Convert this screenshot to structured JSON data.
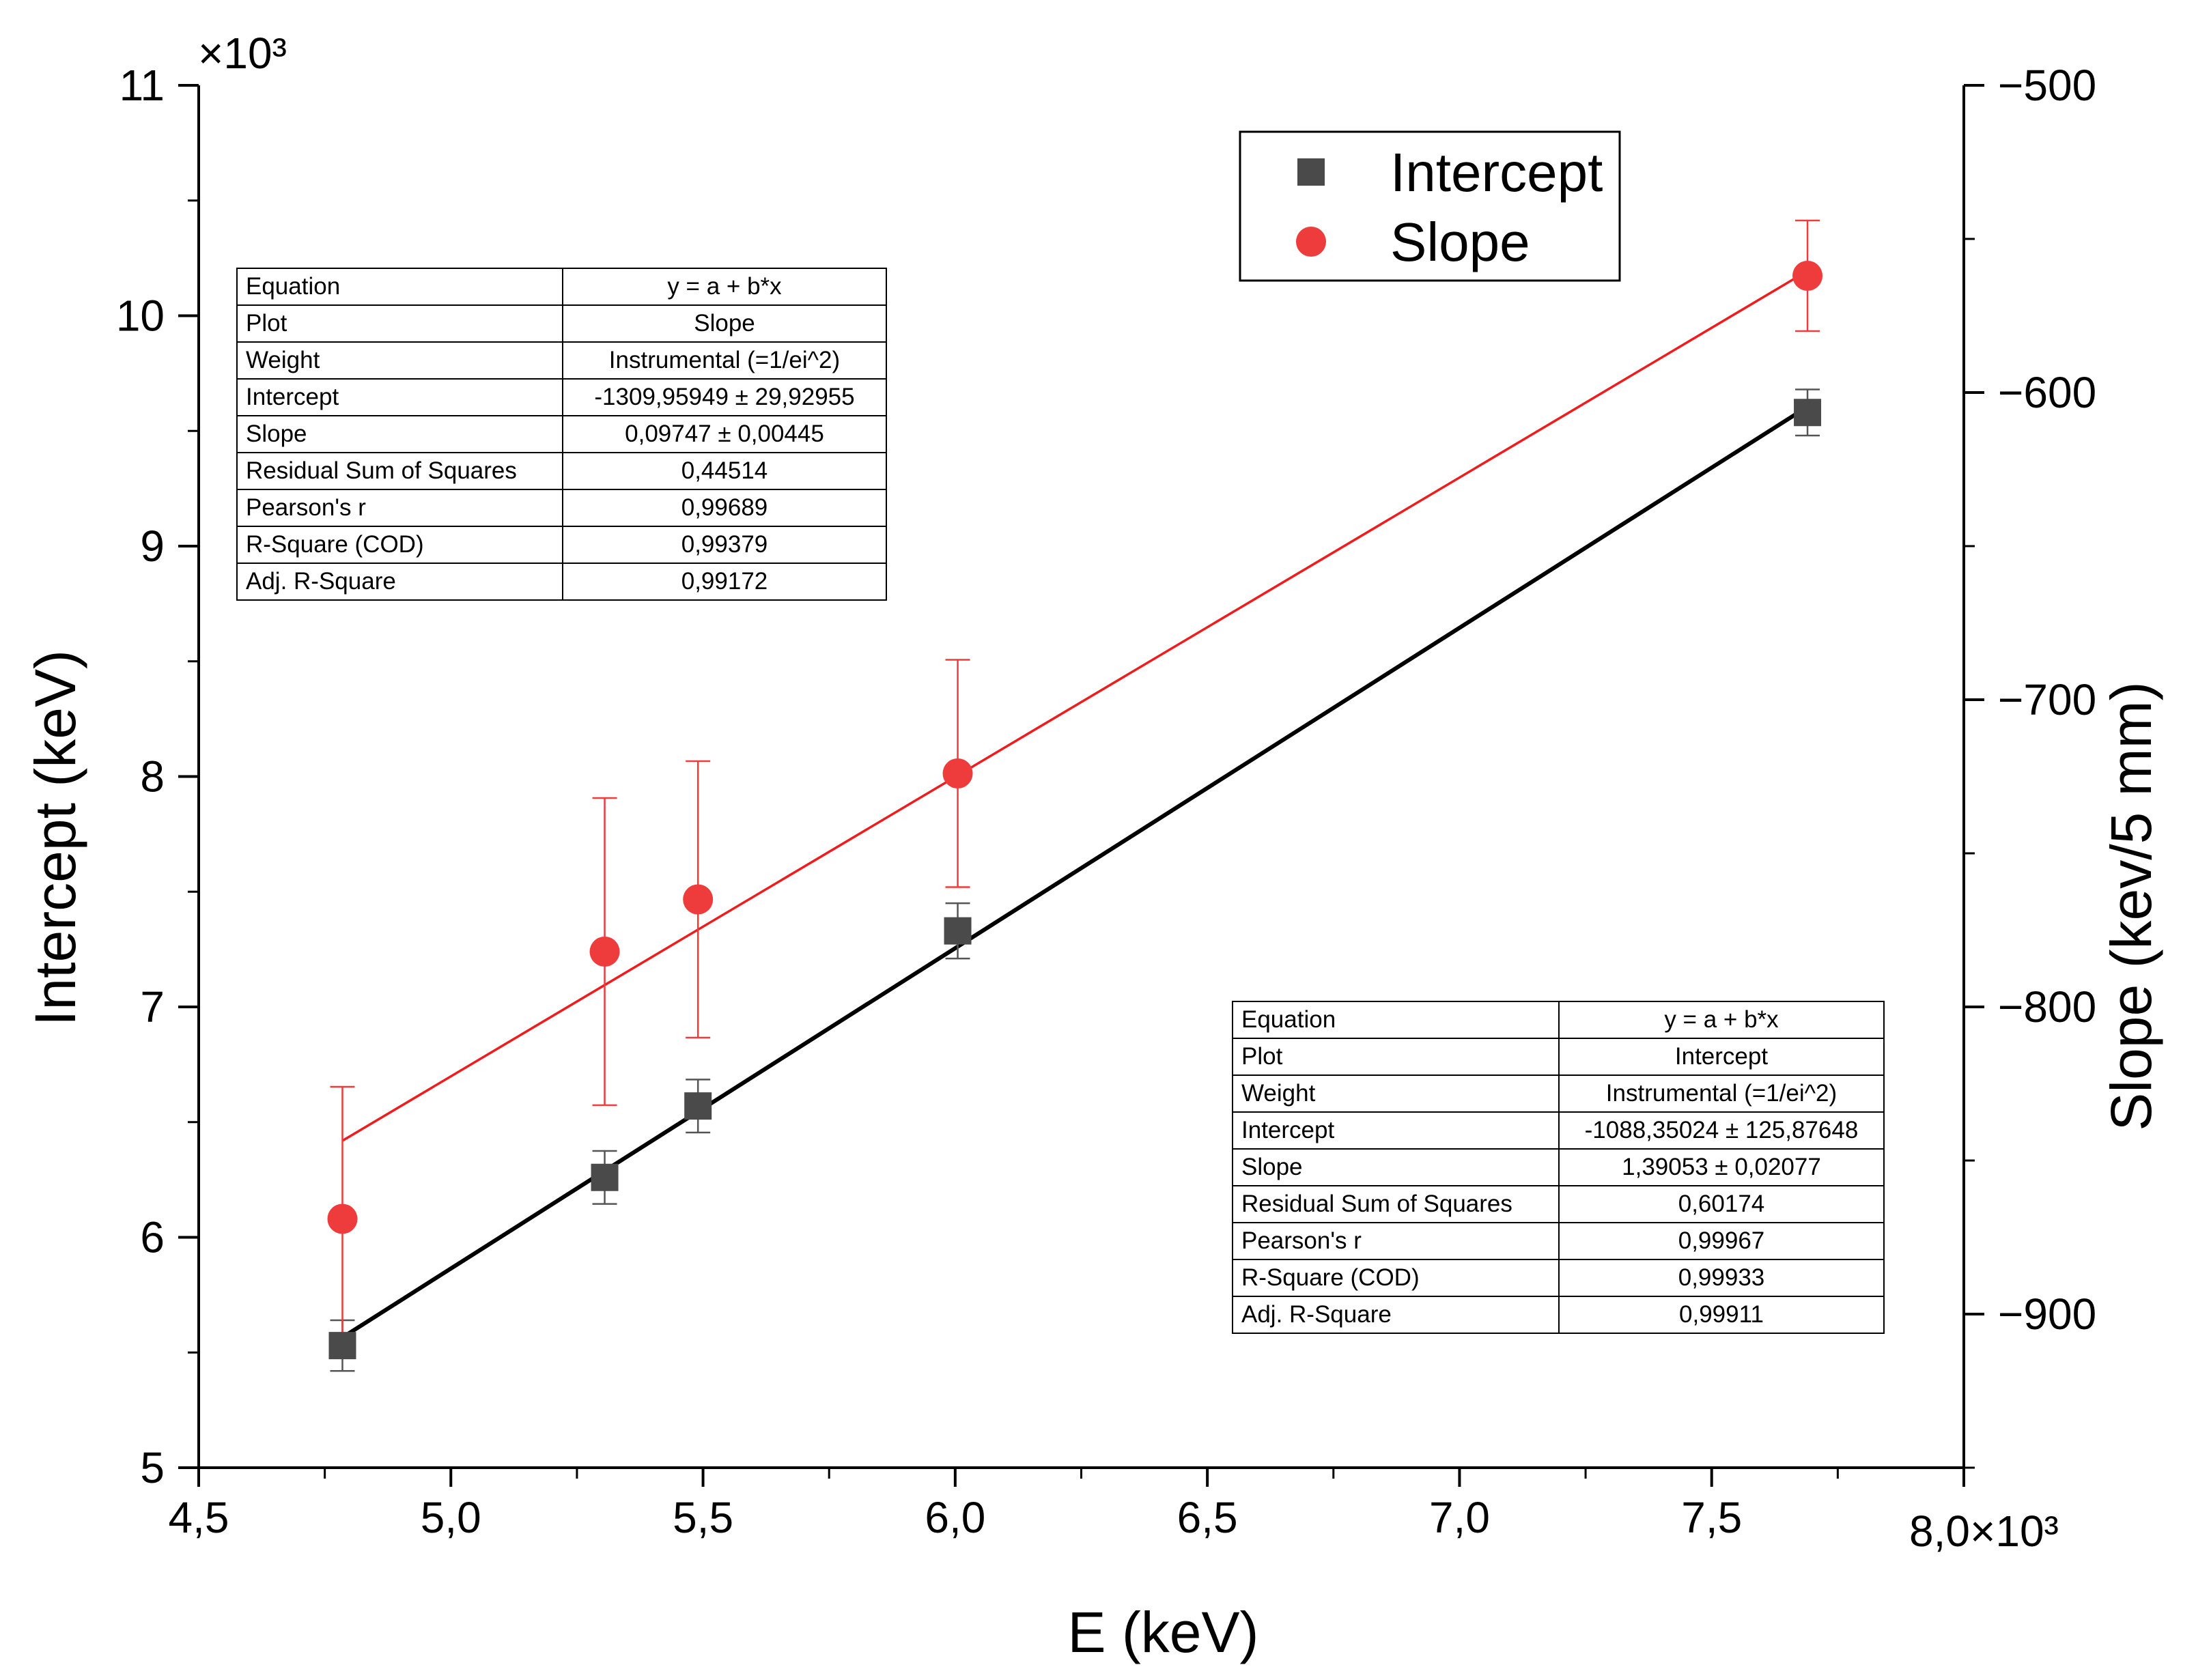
{
  "chart_data": {
    "type": "scatter",
    "xlabel": "E (keV)",
    "ylabel": "Intercept (keV)",
    "y2label": "Slope (kev/5 mm)",
    "x_multiplier": "8,0×10³",
    "y_multiplier": "×10³",
    "xlim": [
      4500,
      8000
    ],
    "ylim": [
      5000,
      11000
    ],
    "y2lim": [
      -950,
      -500
    ],
    "x_ticks": [
      "4,5",
      "5,0",
      "5,5",
      "6,0",
      "6,5",
      "7,0",
      "7,5"
    ],
    "y_ticks": [
      "5",
      "6",
      "7",
      "8",
      "9",
      "10",
      "11"
    ],
    "y2_ticks": [
      "−500",
      "−600",
      "−700",
      "−800",
      "−900"
    ],
    "legend_position": "top-right",
    "series": [
      {
        "name": "Intercept",
        "axis": "left",
        "marker": "square",
        "color": "#4a4a4a",
        "x": [
          4785,
          5305,
          5490,
          6005,
          7690
        ],
        "y": [
          5530,
          6260,
          6570,
          7330,
          9580
        ],
        "err": [
          110,
          115,
          115,
          120,
          100
        ]
      },
      {
        "name": "Slope",
        "axis": "right",
        "marker": "circle",
        "color": "#ee3b3b",
        "x": [
          4785,
          5305,
          5490,
          6005,
          7690
        ],
        "y": [
          -869,
          -782,
          -765,
          -724,
          -562
        ],
        "err": [
          43,
          50,
          45,
          37,
          18
        ]
      }
    ],
    "fits": [
      {
        "series": "Intercept",
        "a": -1088.35024,
        "b": 1.39053,
        "color": "#000000",
        "x_from": 4785,
        "x_to": 7690
      },
      {
        "series": "Slope",
        "a": -1309.95949,
        "b": 0.09747,
        "color": "#ee1c1c",
        "x_from": 4785,
        "x_to": 7690
      }
    ]
  },
  "legend": {
    "items": [
      {
        "label": "Intercept",
        "marker": "square",
        "color": "#4a4a4a"
      },
      {
        "label": "Slope",
        "marker": "circle",
        "color": "#ee3b3b"
      }
    ]
  },
  "tables": {
    "slope_fit": [
      [
        "Equation",
        "y = a + b*x"
      ],
      [
        "Plot",
        "Slope"
      ],
      [
        "Weight",
        "Instrumental (=1/ei^2)"
      ],
      [
        "Intercept",
        "-1309,95949 ± 29,92955"
      ],
      [
        "Slope",
        "0,09747 ± 0,00445"
      ],
      [
        "Residual Sum of Squares",
        "0,44514"
      ],
      [
        "Pearson's r",
        "0,99689"
      ],
      [
        "R-Square (COD)",
        "0,99379"
      ],
      [
        "Adj. R-Square",
        "0,99172"
      ]
    ],
    "intercept_fit": [
      [
        "Equation",
        "y = a + b*x"
      ],
      [
        "Plot",
        "Intercept"
      ],
      [
        "Weight",
        "Instrumental (=1/ei^2)"
      ],
      [
        "Intercept",
        "-1088,35024 ± 125,87648"
      ],
      [
        "Slope",
        "1,39053 ± 0,02077"
      ],
      [
        "Residual Sum of Squares",
        "0,60174"
      ],
      [
        "Pearson's r",
        "0,99967"
      ],
      [
        "R-Square (COD)",
        "0,99933"
      ],
      [
        "Adj. R-Square",
        "0,99911"
      ]
    ]
  }
}
